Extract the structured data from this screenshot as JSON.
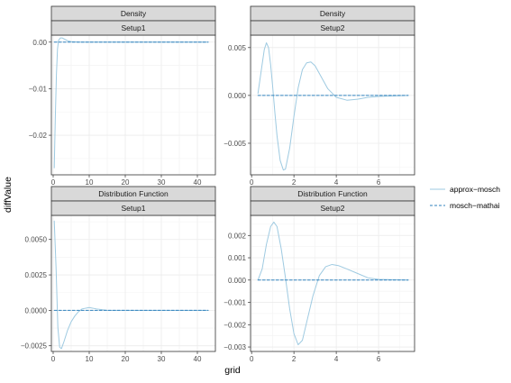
{
  "chart_data": {
    "type": "line",
    "xlabel": "grid",
    "ylabel": "diffValue",
    "grid": true,
    "legend": {
      "placement": "right",
      "entries": [
        {
          "name": "approx−mosch",
          "color": "#9ecae1",
          "dash": "solid"
        },
        {
          "name": "mosch−mathai",
          "color": "#3182bd",
          "dash": "dashed"
        }
      ]
    },
    "panels": [
      {
        "strip_top": "Density",
        "strip_bottom": "Setup1",
        "xlim": [
          -0.5,
          45
        ],
        "ylim": [
          -0.0285,
          0.0015
        ],
        "xticks": [
          0,
          10,
          20,
          30,
          40
        ],
        "xtick_labels": [
          "0",
          "10",
          "20",
          "30",
          "40"
        ],
        "yticks": [
          0.0,
          -0.01,
          -0.02
        ],
        "ytick_labels": [
          "0.00",
          "−0.01",
          "−0.02"
        ],
        "series": [
          {
            "name": "approx−mosch",
            "points": [
              [
                0.3,
                -0.027
              ],
              [
                0.6,
                -0.016
              ],
              [
                0.9,
                -0.007
              ],
              [
                1.2,
                -0.0015
              ],
              [
                1.5,
                0.0004
              ],
              [
                2,
                0.0009
              ],
              [
                2.5,
                0.0009
              ],
              [
                3,
                0.0007
              ],
              [
                4,
                0.0003
              ],
              [
                5,
                0.0001
              ],
              [
                7,
                0.0
              ],
              [
                10,
                0.0
              ],
              [
                20,
                0.0
              ],
              [
                30,
                0.0
              ],
              [
                43,
                0.0
              ]
            ]
          },
          {
            "name": "mosch−mathai",
            "points": [
              [
                0.3,
                0.0
              ],
              [
                43,
                0.0
              ]
            ]
          }
        ]
      },
      {
        "strip_top": "Density",
        "strip_bottom": "Setup2",
        "xlim": [
          -0.05,
          7.7
        ],
        "ylim": [
          -0.0083,
          0.0063
        ],
        "xticks": [
          0,
          2,
          4,
          6
        ],
        "xtick_labels": [
          "0",
          "2",
          "4",
          "6"
        ],
        "yticks": [
          0.005,
          0.0,
          -0.005
        ],
        "ytick_labels": [
          "0.005",
          "0.000",
          "−0.005"
        ],
        "series": [
          {
            "name": "approx−mosch",
            "points": [
              [
                0.3,
                0.0002
              ],
              [
                0.45,
                0.0025
              ],
              [
                0.6,
                0.0048
              ],
              [
                0.7,
                0.0055
              ],
              [
                0.8,
                0.005
              ],
              [
                0.9,
                0.0032
              ],
              [
                1.0,
                0.0008
              ],
              [
                1.1,
                -0.0018
              ],
              [
                1.2,
                -0.0042
              ],
              [
                1.35,
                -0.0068
              ],
              [
                1.5,
                -0.0078
              ],
              [
                1.6,
                -0.0077
              ],
              [
                1.8,
                -0.0055
              ],
              [
                2.0,
                -0.0022
              ],
              [
                2.2,
                0.0008
              ],
              [
                2.4,
                0.0027
              ],
              [
                2.6,
                0.0034
              ],
              [
                2.8,
                0.0035
              ],
              [
                3.0,
                0.0031
              ],
              [
                3.3,
                0.0019
              ],
              [
                3.6,
                0.0007
              ],
              [
                4.0,
                -0.0002
              ],
              [
                4.5,
                -0.0005
              ],
              [
                5.0,
                -0.0004
              ],
              [
                5.5,
                -0.0002
              ],
              [
                6.0,
                -0.0001
              ],
              [
                7.4,
                0.0
              ]
            ]
          },
          {
            "name": "mosch−mathai",
            "points": [
              [
                0.3,
                0.0
              ],
              [
                7.4,
                0.0
              ]
            ]
          }
        ]
      },
      {
        "strip_top": "Distribution Function",
        "strip_bottom": "Setup1",
        "xlim": [
          -0.5,
          45
        ],
        "ylim": [
          -0.0029,
          0.0067
        ],
        "xticks": [
          0,
          10,
          20,
          30,
          40
        ],
        "xtick_labels": [
          "0",
          "10",
          "20",
          "30",
          "40"
        ],
        "yticks": [
          0.005,
          0.0025,
          0.0,
          -0.0025
        ],
        "ytick_labels": [
          "0.0050",
          "0.0025",
          "0.0000",
          "−0.0025"
        ],
        "series": [
          {
            "name": "approx−mosch",
            "points": [
              [
                0.3,
                0.0063
              ],
              [
                0.8,
                0.003
              ],
              [
                1.3,
                -0.0012
              ],
              [
                1.8,
                -0.0026
              ],
              [
                2.3,
                -0.0027
              ],
              [
                3,
                -0.0022
              ],
              [
                4,
                -0.0014
              ],
              [
                5,
                -0.0008
              ],
              [
                6,
                -0.0004
              ],
              [
                7,
                -0.0001
              ],
              [
                8,
                0.0001
              ],
              [
                10,
                0.0002
              ],
              [
                12,
                0.0001
              ],
              [
                15,
                0.0
              ],
              [
                20,
                0.0
              ],
              [
                30,
                0.0
              ],
              [
                43,
                0.0
              ]
            ]
          },
          {
            "name": "mosch−mathai",
            "points": [
              [
                0.3,
                0.0
              ],
              [
                43,
                0.0
              ]
            ]
          }
        ]
      },
      {
        "strip_top": "Distribution Function",
        "strip_bottom": "Setup2",
        "xlim": [
          -0.05,
          7.7
        ],
        "ylim": [
          -0.0032,
          0.0029
        ],
        "xticks": [
          0,
          2,
          4,
          6
        ],
        "xtick_labels": [
          "0",
          "2",
          "4",
          "6"
        ],
        "yticks": [
          0.002,
          0.001,
          0.0,
          -0.001,
          -0.002,
          -0.003
        ],
        "ytick_labels": [
          "0.002",
          "0.001",
          "0.000",
          "−0.001",
          "−0.002",
          "−0.003"
        ],
        "series": [
          {
            "name": "approx−mosch",
            "points": [
              [
                0.3,
                0.0
              ],
              [
                0.5,
                0.0005
              ],
              [
                0.7,
                0.0016
              ],
              [
                0.9,
                0.0024
              ],
              [
                1.05,
                0.0026
              ],
              [
                1.2,
                0.0024
              ],
              [
                1.4,
                0.0014
              ],
              [
                1.6,
                0.0001
              ],
              [
                1.8,
                -0.0013
              ],
              [
                2.0,
                -0.0024
              ],
              [
                2.2,
                -0.0029
              ],
              [
                2.4,
                -0.0027
              ],
              [
                2.6,
                -0.0019
              ],
              [
                2.9,
                -0.0007
              ],
              [
                3.2,
                0.0002
              ],
              [
                3.5,
                0.0006
              ],
              [
                3.8,
                0.0007
              ],
              [
                4.1,
                0.00065
              ],
              [
                4.5,
                0.0005
              ],
              [
                5.0,
                0.0003
              ],
              [
                5.5,
                0.0001
              ],
              [
                6.0,
                3e-05
              ],
              [
                7.4,
                0.0
              ]
            ]
          },
          {
            "name": "mosch−mathai",
            "points": [
              [
                0.3,
                0.0
              ],
              [
                7.4,
                0.0
              ]
            ]
          }
        ]
      }
    ]
  }
}
